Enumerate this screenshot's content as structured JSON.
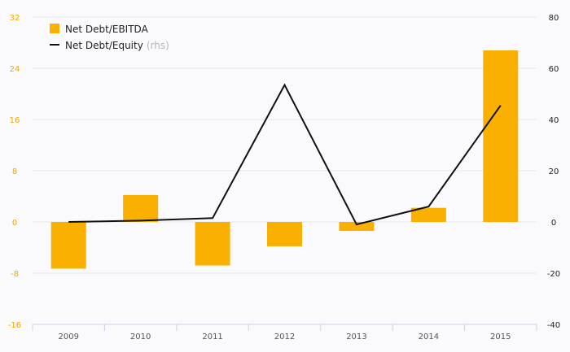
{
  "chart_data": {
    "type": "bar",
    "categories": [
      "2009",
      "2010",
      "2011",
      "2012",
      "2013",
      "2014",
      "2015"
    ],
    "series": [
      {
        "name": "Net Debt/EBITDA",
        "kind": "bar",
        "axis": "left",
        "color": "#f9b000",
        "values": [
          -7.3,
          4.2,
          -6.8,
          -3.8,
          -1.4,
          2.2,
          26.8
        ]
      },
      {
        "name": "Net Debt/Equity",
        "kind": "line",
        "axis": "right",
        "color": "#111111",
        "values": [
          0.0,
          0.5,
          1.5,
          53.5,
          -1.0,
          6.0,
          45.5
        ]
      }
    ],
    "legend_note": "(rhs)",
    "left_axis": {
      "ylim": [
        -16,
        32
      ],
      "ticks": [
        -16,
        -8,
        0,
        8,
        16,
        24,
        32
      ],
      "color": "#f0a800"
    },
    "right_axis": {
      "ylim": [
        -40,
        80
      ],
      "ticks": [
        -40,
        -20,
        0,
        20,
        40,
        60,
        80
      ]
    },
    "grid": true,
    "legend_position": "top-left",
    "title": "",
    "xlabel": "",
    "ylabel": ""
  }
}
